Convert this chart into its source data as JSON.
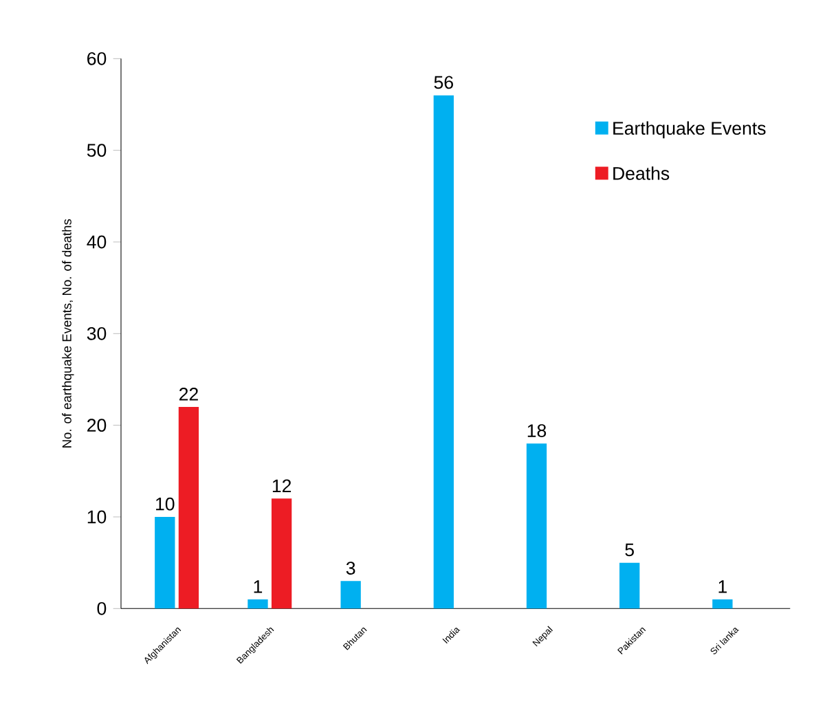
{
  "chart_data": {
    "type": "bar",
    "ylabel": "No. of earthquake Events, No. of deaths",
    "categories": [
      "Afghanistan",
      "Bangladesh",
      "Bhutan",
      "India",
      "Nepal",
      "Pakistan",
      "Sri lanka"
    ],
    "series": [
      {
        "name": "Earthquake Events",
        "color": "#00b0f0",
        "values": [
          10,
          1,
          3,
          56,
          18,
          5,
          1
        ]
      },
      {
        "name": "Deaths",
        "color": "#ed1c24",
        "values": [
          22,
          12,
          null,
          null,
          null,
          null,
          null
        ]
      }
    ],
    "ylim": [
      0,
      60
    ],
    "yticks": [
      0,
      10,
      20,
      30,
      40,
      50,
      60
    ],
    "data_labels": true,
    "legend": "top right",
    "grid": false
  }
}
